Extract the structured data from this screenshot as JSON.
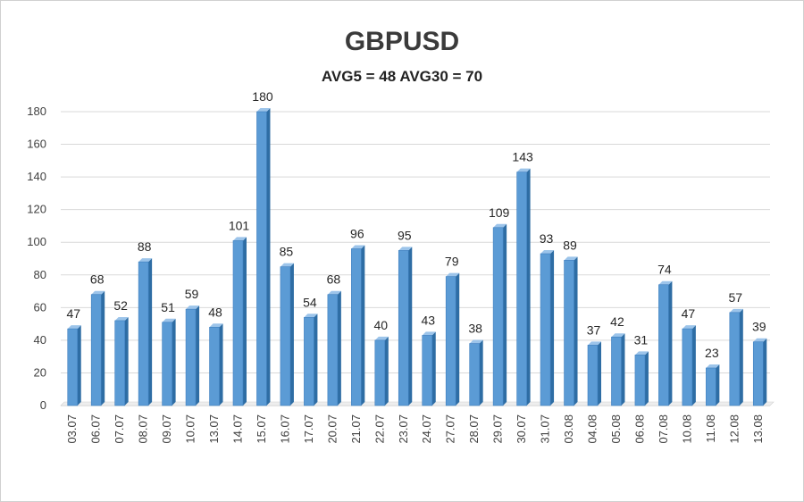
{
  "title": "GBPUSD",
  "subtitle": "AVG5 = 48 AVG30 = 70",
  "chart_data": {
    "type": "bar",
    "title": "GBPUSD",
    "subtitle": "AVG5 = 48 AVG30 = 70",
    "categories": [
      "03.07",
      "06.07",
      "07.07",
      "08.07",
      "09.07",
      "10.07",
      "13.07",
      "14.07",
      "15.07",
      "16.07",
      "17.07",
      "20.07",
      "21.07",
      "22.07",
      "23.07",
      "24.07",
      "27.07",
      "28.07",
      "29.07",
      "30.07",
      "31.07",
      "03.08",
      "04.08",
      "05.08",
      "06.08",
      "07.08",
      "10.08",
      "11.08",
      "12.08",
      "13.08"
    ],
    "values": [
      47,
      68,
      52,
      88,
      51,
      59,
      48,
      101,
      180,
      85,
      54,
      68,
      96,
      40,
      95,
      43,
      79,
      38,
      109,
      143,
      93,
      89,
      37,
      42,
      31,
      74,
      47,
      23,
      57,
      39
    ],
    "ylim": [
      0,
      180
    ],
    "yticks": [
      0,
      20,
      40,
      60,
      80,
      100,
      120,
      140,
      160,
      180
    ],
    "grid": true,
    "legend": "none",
    "bar_color": "#5b9bd5",
    "bar_side_color": "#2e6da4",
    "bar_top_color": "#9cc4ea",
    "gridline_color": "#d9d9d9"
  }
}
